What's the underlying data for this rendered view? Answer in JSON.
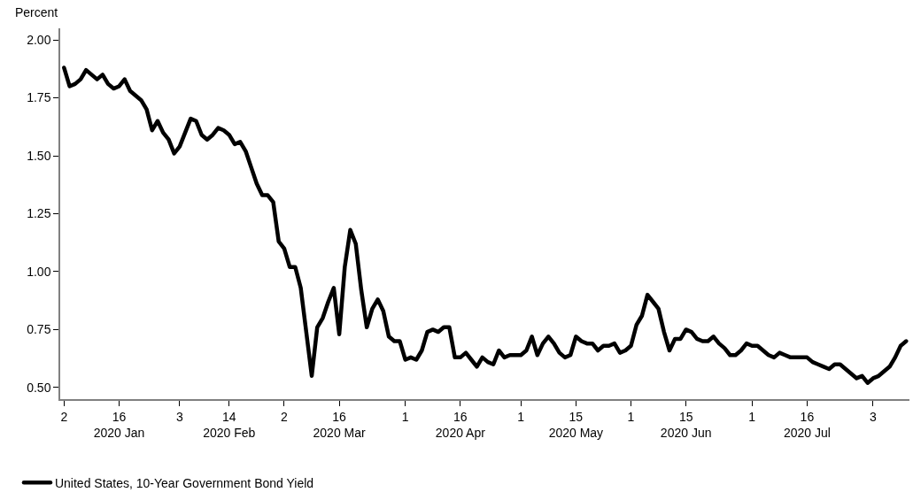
{
  "chart_data": {
    "type": "line",
    "ylabel": "Percent",
    "categories": [
      "2",
      null,
      null,
      null,
      null,
      null,
      null,
      null,
      null,
      null,
      "16\n2020 Jan",
      null,
      null,
      null,
      null,
      null,
      null,
      null,
      null,
      null,
      null,
      "3",
      null,
      null,
      null,
      null,
      null,
      null,
      null,
      null,
      "14\n2020 Feb",
      null,
      null,
      null,
      null,
      null,
      null,
      null,
      null,
      null,
      "2",
      null,
      null,
      null,
      null,
      null,
      null,
      null,
      null,
      null,
      "16\n2020 Mar",
      null,
      null,
      null,
      null,
      null,
      null,
      null,
      null,
      null,
      null,
      null,
      "1",
      null,
      null,
      null,
      null,
      null,
      null,
      null,
      null,
      null,
      "16\n2020 Apr",
      null,
      null,
      null,
      null,
      null,
      null,
      null,
      null,
      null,
      null,
      "1",
      null,
      null,
      null,
      null,
      null,
      null,
      null,
      null,
      null,
      "15\n2020 May",
      null,
      null,
      null,
      null,
      null,
      null,
      null,
      null,
      null,
      "1",
      null,
      null,
      null,
      null,
      null,
      null,
      null,
      null,
      null,
      "15\n2020 Jun",
      null,
      null,
      null,
      null,
      null,
      null,
      null,
      null,
      null,
      null,
      null,
      "1",
      null,
      null,
      null,
      null,
      null,
      null,
      null,
      null,
      null,
      "16\n2020 Jul",
      null,
      null,
      null,
      null,
      null,
      null,
      null,
      null,
      null,
      null,
      null,
      "3",
      null,
      null,
      null,
      null,
      null,
      null
    ],
    "series": [
      {
        "name": "United States, 10-Year Government Bond Yield",
        "color": "#000000",
        "values": [
          1.88,
          1.8,
          1.81,
          1.83,
          1.87,
          1.85,
          1.83,
          1.85,
          1.81,
          1.79,
          1.8,
          1.83,
          1.78,
          1.76,
          1.74,
          1.7,
          1.61,
          1.65,
          1.6,
          1.57,
          1.51,
          1.54,
          1.6,
          1.66,
          1.65,
          1.59,
          1.57,
          1.59,
          1.62,
          1.61,
          1.59,
          1.55,
          1.56,
          1.52,
          1.45,
          1.38,
          1.33,
          1.33,
          1.3,
          1.13,
          1.1,
          1.02,
          1.02,
          0.93,
          0.74,
          0.55,
          0.76,
          0.8,
          0.87,
          0.93,
          0.73,
          1.02,
          1.18,
          1.12,
          0.92,
          0.76,
          0.84,
          0.88,
          0.83,
          0.72,
          0.7,
          0.7,
          0.62,
          0.63,
          0.62,
          0.66,
          0.74,
          0.75,
          0.74,
          0.76,
          0.76,
          0.63,
          0.63,
          0.65,
          0.62,
          0.59,
          0.63,
          0.61,
          0.6,
          0.66,
          0.63,
          0.64,
          0.64,
          0.64,
          0.66,
          0.72,
          0.64,
          0.69,
          0.72,
          0.69,
          0.65,
          0.63,
          0.64,
          0.72,
          0.7,
          0.69,
          0.69,
          0.66,
          0.68,
          0.68,
          0.69,
          0.65,
          0.66,
          0.68,
          0.77,
          0.81,
          0.9,
          0.87,
          0.84,
          0.74,
          0.66,
          0.71,
          0.71,
          0.75,
          0.74,
          0.71,
          0.7,
          0.7,
          0.72,
          0.69,
          0.67,
          0.64,
          0.64,
          0.66,
          0.69,
          0.68,
          0.68,
          0.66,
          0.64,
          0.63,
          0.65,
          0.64,
          0.63,
          0.63,
          0.63,
          0.63,
          0.61,
          0.6,
          0.59,
          0.58,
          0.6,
          0.6,
          0.58,
          0.56,
          0.54,
          0.55,
          0.52,
          0.54,
          0.55,
          0.57,
          0.59,
          0.63,
          0.68,
          0.7
        ]
      }
    ],
    "ylim": [
      0.45,
      2.05
    ],
    "yticks": [
      {
        "value": 0.5,
        "label": "0.50"
      },
      {
        "value": 0.75,
        "label": "0.75"
      },
      {
        "value": 1.0,
        "label": "1.00"
      },
      {
        "value": 1.25,
        "label": "1.25"
      },
      {
        "value": 1.5,
        "label": "1.50"
      },
      {
        "value": 1.75,
        "label": "1.75"
      },
      {
        "value": 2.0,
        "label": "2.00"
      }
    ],
    "legend": "bottom left",
    "marker": "none",
    "line_style": "solid"
  }
}
